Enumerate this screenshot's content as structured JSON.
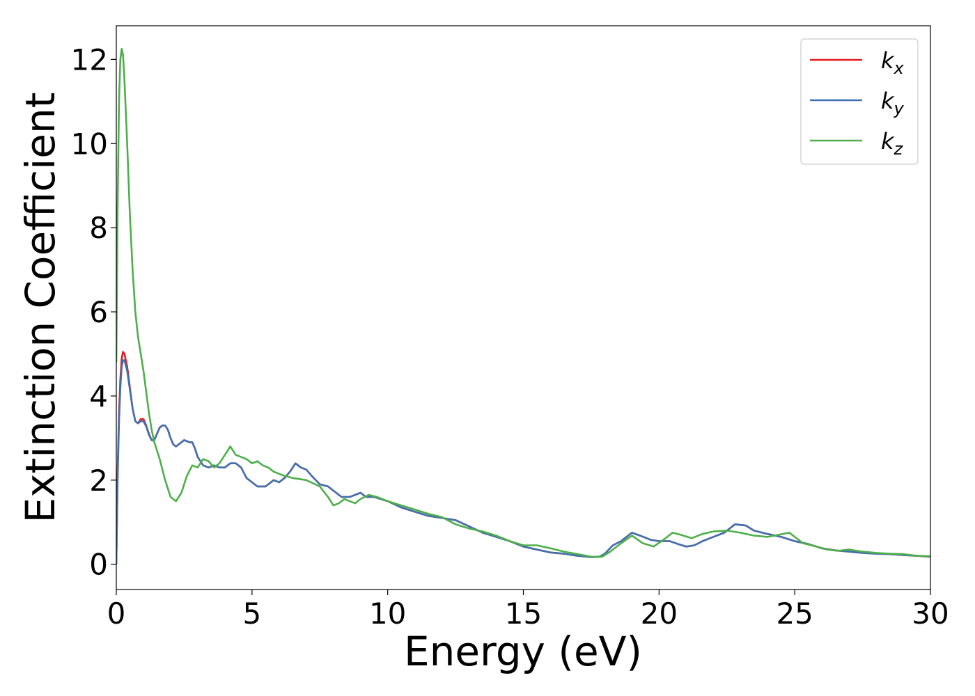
{
  "chart_data": {
    "type": "line",
    "title": "",
    "xlabel": "Energy (eV)",
    "ylabel": "Extinction Coefficient",
    "xlim": [
      0,
      30
    ],
    "ylim": [
      -0.6,
      12.8
    ],
    "xticks": [
      0,
      5,
      10,
      15,
      20,
      25,
      30
    ],
    "yticks": [
      0,
      2,
      4,
      6,
      8,
      10,
      12
    ],
    "grid": false,
    "legend_position": "top-right",
    "series": [
      {
        "name": "k_x",
        "label_main": "k",
        "label_sub": "x",
        "color": "#e41a1c",
        "points": [
          [
            0,
            0
          ],
          [
            0.05,
            2.2
          ],
          [
            0.1,
            3.6
          ],
          [
            0.15,
            4.4
          ],
          [
            0.2,
            4.9
          ],
          [
            0.25,
            5.05
          ],
          [
            0.3,
            5.0
          ],
          [
            0.4,
            4.7
          ],
          [
            0.5,
            4.2
          ],
          [
            0.6,
            3.7
          ],
          [
            0.7,
            3.4
          ],
          [
            0.8,
            3.35
          ],
          [
            0.9,
            3.45
          ],
          [
            1.0,
            3.45
          ],
          [
            1.1,
            3.3
          ],
          [
            1.2,
            3.1
          ],
          [
            1.3,
            2.95
          ],
          [
            1.4,
            2.95
          ],
          [
            1.5,
            3.1
          ],
          [
            1.6,
            3.25
          ],
          [
            1.7,
            3.3
          ],
          [
            1.8,
            3.3
          ],
          [
            1.9,
            3.2
          ],
          [
            2.0,
            3.0
          ],
          [
            2.1,
            2.85
          ],
          [
            2.2,
            2.8
          ],
          [
            2.3,
            2.85
          ],
          [
            2.5,
            2.95
          ],
          [
            2.7,
            2.9
          ],
          [
            2.8,
            2.9
          ],
          [
            2.9,
            2.75
          ],
          [
            3.0,
            2.55
          ],
          [
            3.2,
            2.35
          ],
          [
            3.4,
            2.3
          ],
          [
            3.6,
            2.35
          ],
          [
            3.8,
            2.3
          ],
          [
            4.0,
            2.3
          ],
          [
            4.2,
            2.4
          ],
          [
            4.4,
            2.4
          ],
          [
            4.6,
            2.3
          ],
          [
            4.8,
            2.05
          ],
          [
            5.0,
            1.95
          ],
          [
            5.2,
            1.85
          ],
          [
            5.5,
            1.85
          ],
          [
            5.8,
            2.0
          ],
          [
            6.0,
            1.95
          ],
          [
            6.2,
            2.05
          ],
          [
            6.4,
            2.2
          ],
          [
            6.6,
            2.4
          ],
          [
            6.8,
            2.3
          ],
          [
            7.0,
            2.25
          ],
          [
            7.2,
            2.1
          ],
          [
            7.5,
            1.9
          ],
          [
            7.8,
            1.85
          ],
          [
            8.0,
            1.75
          ],
          [
            8.3,
            1.6
          ],
          [
            8.6,
            1.6
          ],
          [
            8.8,
            1.65
          ],
          [
            9.0,
            1.7
          ],
          [
            9.2,
            1.6
          ],
          [
            9.5,
            1.6
          ],
          [
            10.0,
            1.5
          ],
          [
            10.5,
            1.35
          ],
          [
            11.0,
            1.25
          ],
          [
            11.5,
            1.15
          ],
          [
            12.0,
            1.1
          ],
          [
            12.5,
            1.05
          ],
          [
            13.0,
            0.9
          ],
          [
            13.5,
            0.75
          ],
          [
            14.0,
            0.65
          ],
          [
            14.5,
            0.55
          ],
          [
            15.0,
            0.42
          ],
          [
            15.5,
            0.35
          ],
          [
            16.0,
            0.28
          ],
          [
            16.5,
            0.25
          ],
          [
            17.0,
            0.2
          ],
          [
            17.5,
            0.17
          ],
          [
            17.8,
            0.18
          ],
          [
            18.0,
            0.25
          ],
          [
            18.3,
            0.45
          ],
          [
            18.6,
            0.55
          ],
          [
            18.8,
            0.65
          ],
          [
            19.0,
            0.75
          ],
          [
            19.3,
            0.68
          ],
          [
            19.7,
            0.58
          ],
          [
            20.0,
            0.55
          ],
          [
            20.4,
            0.55
          ],
          [
            20.7,
            0.48
          ],
          [
            21.0,
            0.42
          ],
          [
            21.3,
            0.45
          ],
          [
            21.6,
            0.55
          ],
          [
            22.0,
            0.65
          ],
          [
            22.4,
            0.75
          ],
          [
            22.8,
            0.95
          ],
          [
            23.2,
            0.92
          ],
          [
            23.5,
            0.8
          ],
          [
            24.0,
            0.72
          ],
          [
            24.5,
            0.65
          ],
          [
            25.0,
            0.55
          ],
          [
            25.5,
            0.48
          ],
          [
            26.0,
            0.38
          ],
          [
            26.5,
            0.33
          ],
          [
            27.0,
            0.3
          ],
          [
            27.5,
            0.27
          ],
          [
            28.0,
            0.25
          ],
          [
            28.5,
            0.24
          ],
          [
            29.0,
            0.22
          ],
          [
            29.5,
            0.2
          ],
          [
            30.0,
            0.18
          ]
        ]
      },
      {
        "name": "k_y",
        "label_main": "k",
        "label_sub": "y",
        "color": "#3f70b0",
        "points": [
          [
            0,
            0
          ],
          [
            0.05,
            2.0
          ],
          [
            0.1,
            3.4
          ],
          [
            0.15,
            4.2
          ],
          [
            0.2,
            4.7
          ],
          [
            0.25,
            4.85
          ],
          [
            0.3,
            4.85
          ],
          [
            0.4,
            4.6
          ],
          [
            0.5,
            4.15
          ],
          [
            0.6,
            3.7
          ],
          [
            0.7,
            3.4
          ],
          [
            0.8,
            3.35
          ],
          [
            0.9,
            3.4
          ],
          [
            1.0,
            3.4
          ],
          [
            1.1,
            3.28
          ],
          [
            1.2,
            3.08
          ],
          [
            1.3,
            2.95
          ],
          [
            1.4,
            2.95
          ],
          [
            1.5,
            3.1
          ],
          [
            1.6,
            3.25
          ],
          [
            1.7,
            3.3
          ],
          [
            1.8,
            3.3
          ],
          [
            1.9,
            3.2
          ],
          [
            2.0,
            3.0
          ],
          [
            2.1,
            2.85
          ],
          [
            2.2,
            2.8
          ],
          [
            2.3,
            2.85
          ],
          [
            2.5,
            2.95
          ],
          [
            2.7,
            2.9
          ],
          [
            2.8,
            2.9
          ],
          [
            2.9,
            2.75
          ],
          [
            3.0,
            2.55
          ],
          [
            3.2,
            2.35
          ],
          [
            3.4,
            2.3
          ],
          [
            3.6,
            2.35
          ],
          [
            3.8,
            2.3
          ],
          [
            4.0,
            2.3
          ],
          [
            4.2,
            2.4
          ],
          [
            4.4,
            2.4
          ],
          [
            4.6,
            2.3
          ],
          [
            4.8,
            2.05
          ],
          [
            5.0,
            1.95
          ],
          [
            5.2,
            1.85
          ],
          [
            5.5,
            1.85
          ],
          [
            5.8,
            2.0
          ],
          [
            6.0,
            1.95
          ],
          [
            6.2,
            2.05
          ],
          [
            6.4,
            2.2
          ],
          [
            6.6,
            2.4
          ],
          [
            6.8,
            2.3
          ],
          [
            7.0,
            2.25
          ],
          [
            7.2,
            2.1
          ],
          [
            7.5,
            1.9
          ],
          [
            7.8,
            1.85
          ],
          [
            8.0,
            1.75
          ],
          [
            8.3,
            1.6
          ],
          [
            8.6,
            1.6
          ],
          [
            8.8,
            1.65
          ],
          [
            9.0,
            1.7
          ],
          [
            9.2,
            1.6
          ],
          [
            9.5,
            1.6
          ],
          [
            10.0,
            1.5
          ],
          [
            10.5,
            1.35
          ],
          [
            11.0,
            1.25
          ],
          [
            11.5,
            1.15
          ],
          [
            12.0,
            1.1
          ],
          [
            12.5,
            1.05
          ],
          [
            13.0,
            0.9
          ],
          [
            13.5,
            0.75
          ],
          [
            14.0,
            0.65
          ],
          [
            14.5,
            0.55
          ],
          [
            15.0,
            0.42
          ],
          [
            15.5,
            0.35
          ],
          [
            16.0,
            0.28
          ],
          [
            16.5,
            0.25
          ],
          [
            17.0,
            0.2
          ],
          [
            17.5,
            0.17
          ],
          [
            17.8,
            0.18
          ],
          [
            18.0,
            0.25
          ],
          [
            18.3,
            0.45
          ],
          [
            18.6,
            0.55
          ],
          [
            18.8,
            0.65
          ],
          [
            19.0,
            0.75
          ],
          [
            19.3,
            0.68
          ],
          [
            19.7,
            0.58
          ],
          [
            20.0,
            0.55
          ],
          [
            20.4,
            0.55
          ],
          [
            20.7,
            0.48
          ],
          [
            21.0,
            0.42
          ],
          [
            21.3,
            0.45
          ],
          [
            21.6,
            0.55
          ],
          [
            22.0,
            0.65
          ],
          [
            22.4,
            0.75
          ],
          [
            22.8,
            0.95
          ],
          [
            23.2,
            0.92
          ],
          [
            23.5,
            0.8
          ],
          [
            24.0,
            0.72
          ],
          [
            24.5,
            0.65
          ],
          [
            25.0,
            0.55
          ],
          [
            25.5,
            0.48
          ],
          [
            26.0,
            0.38
          ],
          [
            26.5,
            0.33
          ],
          [
            27.0,
            0.3
          ],
          [
            27.5,
            0.27
          ],
          [
            28.0,
            0.25
          ],
          [
            28.5,
            0.24
          ],
          [
            29.0,
            0.22
          ],
          [
            29.5,
            0.2
          ],
          [
            30.0,
            0.18
          ]
        ]
      },
      {
        "name": "k_z",
        "label_main": "k",
        "label_sub": "z",
        "color": "#4daf4a",
        "points": [
          [
            0,
            4.8
          ],
          [
            0.05,
            8.5
          ],
          [
            0.1,
            11.0
          ],
          [
            0.15,
            12.0
          ],
          [
            0.2,
            12.25
          ],
          [
            0.25,
            12.1
          ],
          [
            0.3,
            11.5
          ],
          [
            0.4,
            10.0
          ],
          [
            0.5,
            8.3
          ],
          [
            0.6,
            7.0
          ],
          [
            0.7,
            6.0
          ],
          [
            0.8,
            5.4
          ],
          [
            0.9,
            5.0
          ],
          [
            1.0,
            4.6
          ],
          [
            1.1,
            4.1
          ],
          [
            1.2,
            3.6
          ],
          [
            1.3,
            3.2
          ],
          [
            1.4,
            2.9
          ],
          [
            1.6,
            2.5
          ],
          [
            1.8,
            2.0
          ],
          [
            2.0,
            1.6
          ],
          [
            2.2,
            1.5
          ],
          [
            2.4,
            1.7
          ],
          [
            2.6,
            2.1
          ],
          [
            2.8,
            2.35
          ],
          [
            3.0,
            2.3
          ],
          [
            3.2,
            2.5
          ],
          [
            3.4,
            2.45
          ],
          [
            3.6,
            2.3
          ],
          [
            3.8,
            2.4
          ],
          [
            4.0,
            2.6
          ],
          [
            4.2,
            2.8
          ],
          [
            4.4,
            2.6
          ],
          [
            4.6,
            2.55
          ],
          [
            4.8,
            2.5
          ],
          [
            5.0,
            2.4
          ],
          [
            5.2,
            2.45
          ],
          [
            5.4,
            2.35
          ],
          [
            5.6,
            2.3
          ],
          [
            5.8,
            2.2
          ],
          [
            6.0,
            2.15
          ],
          [
            6.2,
            2.1
          ],
          [
            6.5,
            2.05
          ],
          [
            7.0,
            2.0
          ],
          [
            7.5,
            1.85
          ],
          [
            7.8,
            1.6
          ],
          [
            8.0,
            1.4
          ],
          [
            8.2,
            1.45
          ],
          [
            8.4,
            1.55
          ],
          [
            8.6,
            1.5
          ],
          [
            8.8,
            1.45
          ],
          [
            9.0,
            1.55
          ],
          [
            9.3,
            1.65
          ],
          [
            9.6,
            1.6
          ],
          [
            10.0,
            1.5
          ],
          [
            10.5,
            1.4
          ],
          [
            11.0,
            1.3
          ],
          [
            11.5,
            1.2
          ],
          [
            12.0,
            1.12
          ],
          [
            12.5,
            0.95
          ],
          [
            13.0,
            0.85
          ],
          [
            13.5,
            0.78
          ],
          [
            14.0,
            0.68
          ],
          [
            14.5,
            0.55
          ],
          [
            15.0,
            0.45
          ],
          [
            15.5,
            0.45
          ],
          [
            16.0,
            0.38
          ],
          [
            16.5,
            0.3
          ],
          [
            17.0,
            0.24
          ],
          [
            17.5,
            0.18
          ],
          [
            17.9,
            0.18
          ],
          [
            18.2,
            0.3
          ],
          [
            18.6,
            0.5
          ],
          [
            19.0,
            0.68
          ],
          [
            19.4,
            0.5
          ],
          [
            19.8,
            0.42
          ],
          [
            20.2,
            0.6
          ],
          [
            20.5,
            0.75
          ],
          [
            20.8,
            0.7
          ],
          [
            21.2,
            0.62
          ],
          [
            21.6,
            0.72
          ],
          [
            22.0,
            0.78
          ],
          [
            22.5,
            0.8
          ],
          [
            23.0,
            0.75
          ],
          [
            23.5,
            0.68
          ],
          [
            24.0,
            0.65
          ],
          [
            24.4,
            0.7
          ],
          [
            24.8,
            0.75
          ],
          [
            25.0,
            0.65
          ],
          [
            25.3,
            0.5
          ],
          [
            25.8,
            0.42
          ],
          [
            26.2,
            0.35
          ],
          [
            26.6,
            0.32
          ],
          [
            27.0,
            0.35
          ],
          [
            27.5,
            0.3
          ],
          [
            28.0,
            0.27
          ],
          [
            28.5,
            0.25
          ],
          [
            29.0,
            0.24
          ],
          [
            29.5,
            0.2
          ],
          [
            30.0,
            0.19
          ]
        ]
      }
    ]
  }
}
